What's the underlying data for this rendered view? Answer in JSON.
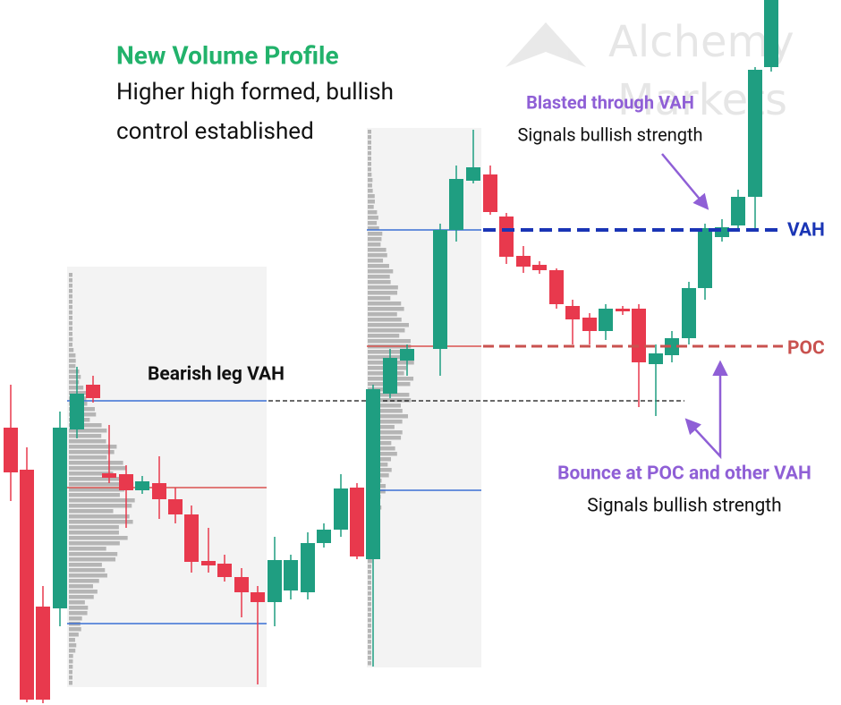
{
  "watermark": {
    "line1": "Alchemy",
    "line2": "Markets"
  },
  "headline": {
    "title": "New Volume Profile",
    "lines": [
      "Higher high formed, bullish",
      "control established"
    ]
  },
  "blast_note": {
    "title": "Blasted through VAH",
    "text": "Signals bullish strength"
  },
  "levels": {
    "vah": "VAH",
    "poc": "POC",
    "bearish": "Bearish leg VAH"
  },
  "bounce_note": {
    "title": "Bounce at POC and other VAH",
    "text": "Signals bullish strength"
  }
}
